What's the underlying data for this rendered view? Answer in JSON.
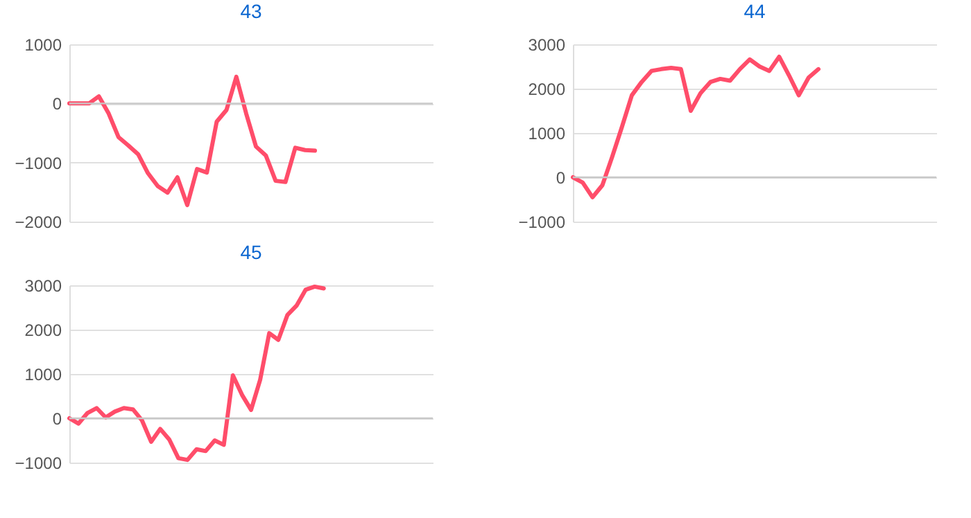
{
  "chart_data": [
    {
      "type": "line",
      "title": "43",
      "categories": [
        null,
        null,
        null,
        null,
        null,
        null,
        null,
        null,
        null,
        null,
        null,
        null,
        null,
        null,
        null,
        null,
        null,
        null,
        null,
        null,
        null,
        null,
        null,
        null,
        null,
        null,
        null,
        null,
        null,
        null,
        null,
        null,
        null,
        null,
        null,
        null,
        null,
        null
      ],
      "series": [
        {
          "color": "#ff4d6a",
          "values": [
            0,
            0,
            0,
            120,
            -170,
            -570,
            -710,
            -860,
            -1180,
            -1400,
            -1510,
            -1250,
            -1720,
            -1110,
            -1170,
            -310,
            -110,
            450,
            -170,
            -730,
            -880,
            -1310,
            -1330,
            -750,
            -790,
            -800,
            null,
            null,
            null,
            null,
            null,
            null,
            null,
            null,
            null,
            null,
            null,
            null
          ]
        }
      ],
      "ylim": [
        -2000,
        1000
      ],
      "yticks": [
        -2000,
        -1000,
        0,
        1000
      ],
      "grid": "y",
      "tick_labels": "y",
      "legend": false,
      "marker": "none",
      "line_style": "solid"
    },
    {
      "type": "line",
      "title": "44",
      "categories": [
        null,
        null,
        null,
        null,
        null,
        null,
        null,
        null,
        null,
        null,
        null,
        null,
        null,
        null,
        null,
        null,
        null,
        null,
        null,
        null,
        null,
        null,
        null,
        null,
        null,
        null,
        null,
        null,
        null,
        null,
        null,
        null,
        null,
        null,
        null,
        null,
        null,
        null
      ],
      "series": [
        {
          "color": "#ff4d6a",
          "values": [
            0,
            -120,
            -450,
            -180,
            460,
            1140,
            1850,
            2150,
            2400,
            2440,
            2470,
            2440,
            1500,
            1900,
            2150,
            2220,
            2180,
            2440,
            2660,
            2500,
            2400,
            2720,
            2300,
            1850,
            2250,
            2440,
            null,
            null,
            null,
            null,
            null,
            null,
            null,
            null,
            null,
            null,
            null,
            null
          ]
        }
      ],
      "ylim": [
        -1000,
        3000
      ],
      "yticks": [
        -1000,
        0,
        1000,
        2000,
        3000
      ],
      "grid": "y",
      "tick_labels": "y",
      "legend": false,
      "marker": "none",
      "line_style": "solid"
    },
    {
      "type": "line",
      "title": "45",
      "categories": [
        null,
        null,
        null,
        null,
        null,
        null,
        null,
        null,
        null,
        null,
        null,
        null,
        null,
        null,
        null,
        null,
        null,
        null,
        null,
        null,
        null,
        null,
        null,
        null,
        null,
        null,
        null,
        null,
        null,
        null,
        null,
        null,
        null,
        null,
        null,
        null,
        null,
        null,
        null,
        null,
        null
      ],
      "series": [
        {
          "color": "#ff4d6a",
          "values": [
            0,
            -120,
            120,
            230,
            20,
            150,
            230,
            200,
            -50,
            -530,
            -240,
            -480,
            -900,
            -940,
            -700,
            -740,
            -500,
            -600,
            970,
            530,
            190,
            870,
            1920,
            1770,
            2330,
            2540,
            2900,
            2970,
            2930,
            null,
            null,
            null,
            null,
            null,
            null,
            null,
            null,
            null,
            null,
            null,
            null
          ]
        }
      ],
      "ylim": [
        -1000,
        3000
      ],
      "yticks": [
        -1000,
        0,
        1000,
        2000,
        3000
      ],
      "grid": "y",
      "tick_labels": "y",
      "legend": false,
      "marker": "none",
      "line_style": "solid"
    }
  ]
}
